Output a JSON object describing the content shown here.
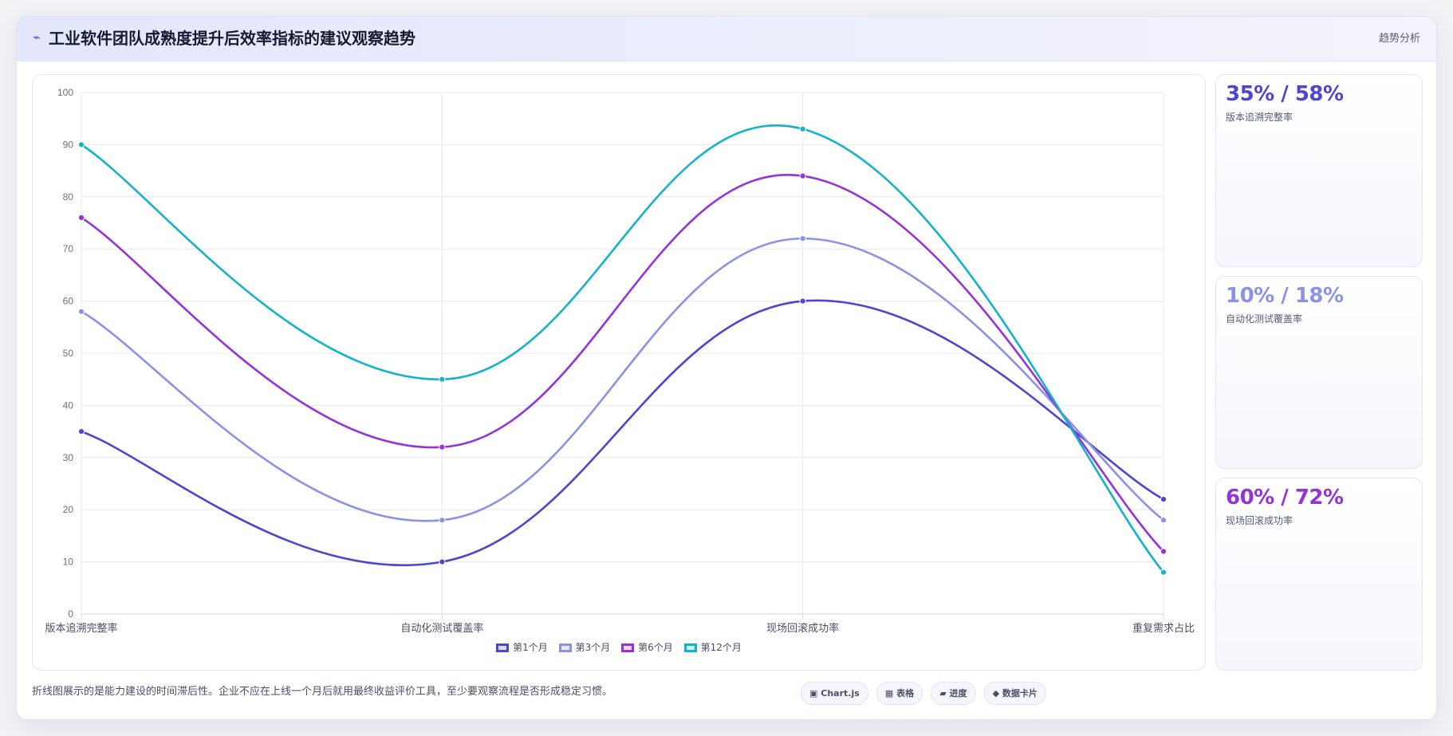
{
  "header": {
    "title_icon": "⌁",
    "title": "工业软件团队成熟度提升后效率指标的建议观察趋势",
    "tag": "趋势分析"
  },
  "chart_data": {
    "type": "line",
    "categories": [
      "版本追溯完整率",
      "自动化测试覆盖率",
      "现场回滚成功率",
      "重复需求占比"
    ],
    "ylim": [
      0,
      100
    ],
    "yticks": [
      0,
      10,
      20,
      30,
      40,
      50,
      60,
      70,
      80,
      90,
      100
    ],
    "grid": true,
    "legend_position": "bottom",
    "series": [
      {
        "name": "第1个月",
        "color": "#4f46cf",
        "values": [
          35,
          10,
          60,
          22
        ]
      },
      {
        "name": "第3个月",
        "color": "#8b92e6",
        "values": [
          58,
          18,
          72,
          18
        ]
      },
      {
        "name": "第6个月",
        "color": "#9333d8",
        "values": [
          76,
          32,
          84,
          12
        ]
      },
      {
        "name": "第12个月",
        "color": "#14b3c8",
        "values": [
          90,
          45,
          93,
          8
        ]
      }
    ]
  },
  "stats": [
    {
      "value": "35% / 58%",
      "label": "版本追溯完整率",
      "color": "#4f46cf"
    },
    {
      "value": "10% / 18%",
      "label": "自动化测试覆盖率",
      "color": "#8b92e6"
    },
    {
      "value": "60% / 72%",
      "label": "现场回滚成功率",
      "color": "#9333d8"
    }
  ],
  "footnote": "折线图展示的是能力建设的时间滞后性。企业不应在上线一个月后就用最终收益评价工具，至少要观察流程是否形成稳定习惯。",
  "chips": [
    {
      "icon": "▣",
      "label": "Chart.js"
    },
    {
      "icon": "▦",
      "label": "表格"
    },
    {
      "icon": "▰",
      "label": "进度"
    },
    {
      "icon": "◆",
      "label": "数据卡片"
    }
  ]
}
